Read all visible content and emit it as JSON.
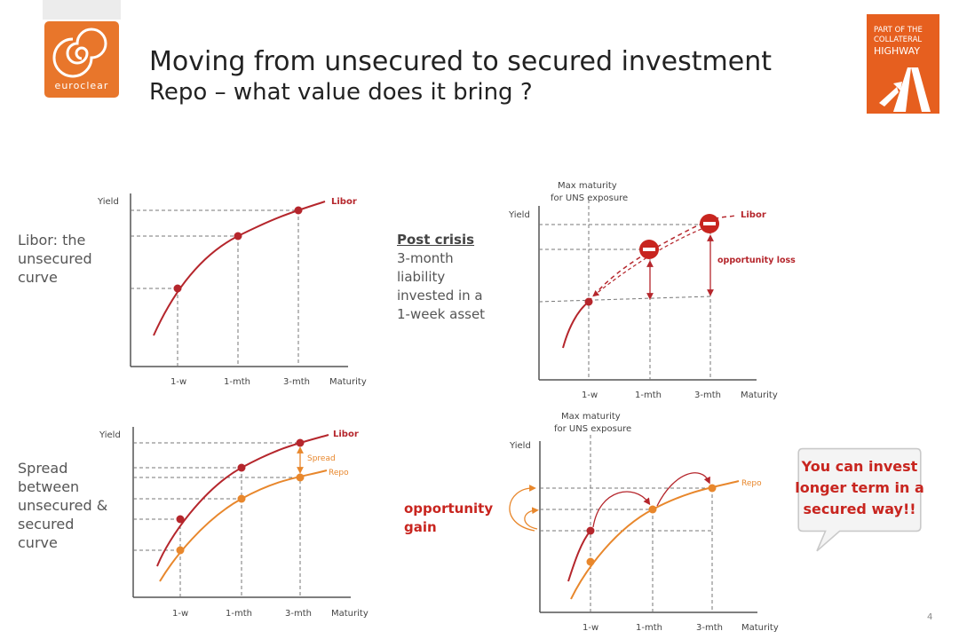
{
  "header": {
    "title_line1": "Moving from unsecured to secured investment",
    "title_line2": "Repo – what value does it bring ?",
    "logo_text": "euroclear",
    "badge_line1": "PART OF THE",
    "badge_line2": "COLLATERAL",
    "badge_line3": "HIGHWAY"
  },
  "labels": {
    "libor_unsecured": [
      "Libor: the",
      "unsecured",
      "curve"
    ],
    "spread_between": [
      "Spread",
      "between",
      "unsecured &",
      "secured",
      "curve"
    ],
    "post_crisis_head": "Post crisis",
    "post_crisis_body": [
      "3-month",
      "liability",
      "invested in a",
      "1-week asset"
    ],
    "opportunity_gain": [
      "opportunity",
      "gain"
    ]
  },
  "axes": {
    "yield": "Yield",
    "maturity": "Maturity",
    "tick_1w": "1-w",
    "tick_1m": "1-mth",
    "tick_3m": "3-mth"
  },
  "curves": {
    "libor": "Libor",
    "repo": "Repo",
    "spread": "Spread",
    "opportunity_loss": "opportunity  loss",
    "max_maturity_line1": "Max maturity",
    "max_maturity_line2": "for UNS exposure"
  },
  "callout": {
    "text": "You can invest longer term in a secured way!!"
  },
  "page_number": "4",
  "colors": {
    "libor": "#b5262c",
    "repo": "#e8872c",
    "accent_red": "#c8251f",
    "logo_orange": "#e8762b",
    "badge_orange": "#e65f1f"
  },
  "icons": {
    "logo": "euroclear-swirl-icon",
    "badge": "highway-road-icon",
    "no_entry": "no-entry-icon"
  }
}
